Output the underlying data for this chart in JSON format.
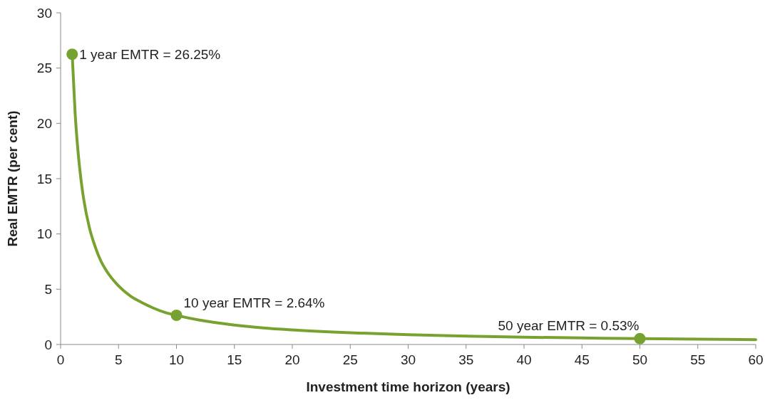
{
  "chart_data": {
    "type": "line",
    "xlabel": "Investment time horizon (years)",
    "ylabel": "Real EMTR (per cent)",
    "xlim": [
      0,
      60
    ],
    "xticks": [
      0,
      5,
      10,
      15,
      20,
      25,
      30,
      35,
      40,
      45,
      50,
      55,
      60
    ],
    "ylim": [
      0,
      30
    ],
    "yticks": [
      0,
      5,
      10,
      15,
      20,
      25,
      30
    ],
    "grid": false,
    "line_style": "solid",
    "series": [
      {
        "color": "#78a22f",
        "marker": "none",
        "x": [
          1,
          1.25,
          1.5,
          1.75,
          2,
          2.5,
          3,
          3.5,
          4,
          5,
          6,
          7,
          8,
          9,
          10,
          12,
          15,
          17.5,
          20,
          25,
          30,
          35,
          40,
          45,
          50,
          55,
          60
        ],
        "values": [
          26.25,
          21,
          17.5,
          15,
          13.1,
          10.5,
          8.8,
          7.5,
          6.6,
          5.3,
          4.4,
          3.8,
          3.3,
          2.9,
          2.64,
          2.2,
          1.76,
          1.5,
          1.32,
          1.06,
          0.88,
          0.75,
          0.66,
          0.59,
          0.53,
          0.48,
          0.44
        ]
      },
      {
        "type": "scatter",
        "color": "#78a22f",
        "marker": "circle",
        "x": [
          1,
          10,
          50
        ],
        "values": [
          26.25,
          2.64,
          0.53
        ]
      }
    ],
    "annotations": [
      {
        "text": "1 year EMTR = 26.25%",
        "x": 1,
        "y": 26.25
      },
      {
        "text": "10 year EMTR = 2.64%",
        "x": 10,
        "y": 2.64
      },
      {
        "text": "50 year EMTR = 0.53%",
        "x": 50,
        "y": 0.53
      }
    ]
  }
}
